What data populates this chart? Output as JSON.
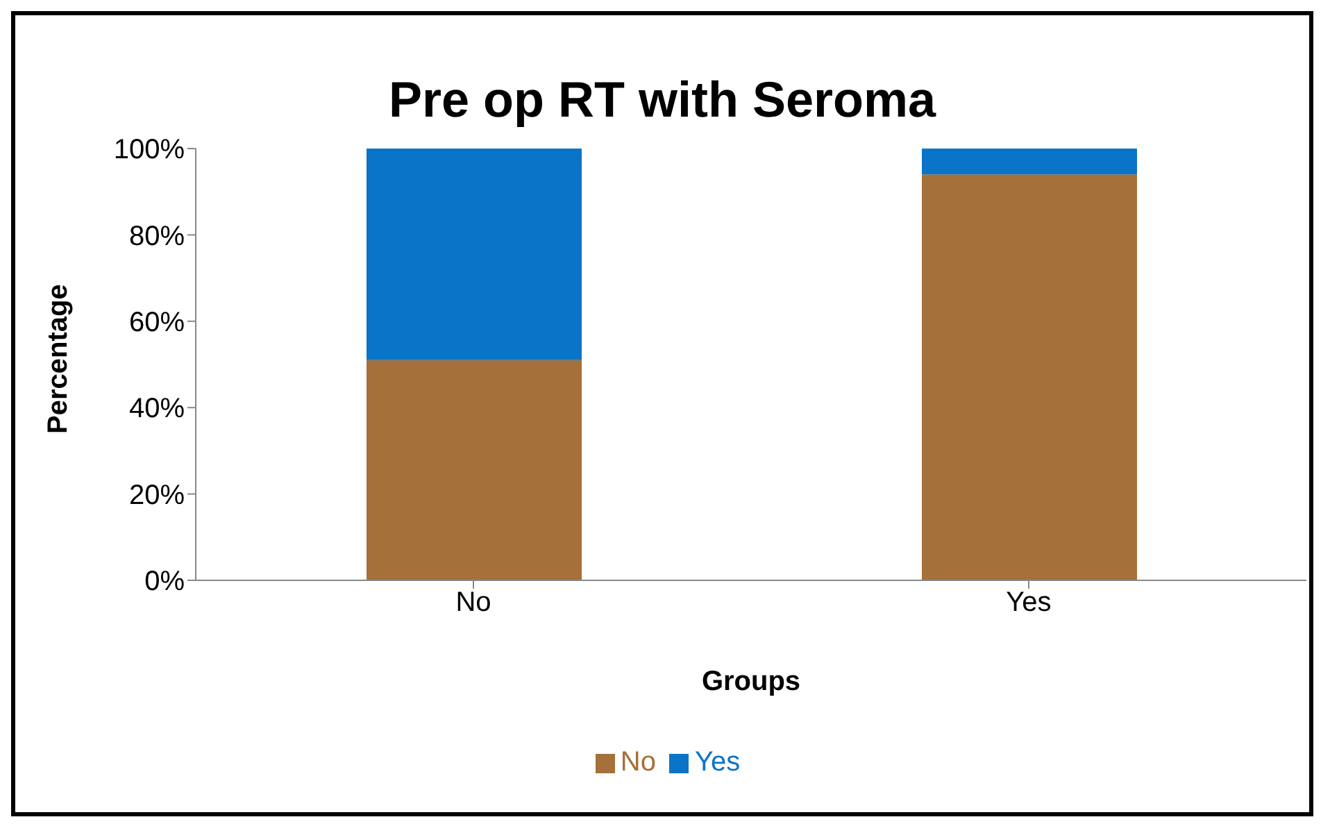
{
  "chart_data": {
    "type": "bar",
    "title": "Pre op RT with Seroma",
    "xlabel": "Groups",
    "ylabel": "Percentage",
    "categories": [
      "No",
      "Yes"
    ],
    "stacked": true,
    "series": [
      {
        "name": "No",
        "color": "#a5703a",
        "values": [
          51,
          94
        ]
      },
      {
        "name": "Yes",
        "color": "#0a74c8",
        "values": [
          49,
          6
        ]
      }
    ],
    "ylim": [
      0,
      100
    ],
    "yticks": [
      {
        "value": 0,
        "label": "0%"
      },
      {
        "value": 20,
        "label": "20%"
      },
      {
        "value": 40,
        "label": "40%"
      },
      {
        "value": 60,
        "label": "60%"
      },
      {
        "value": 80,
        "label": "80%"
      },
      {
        "value": 100,
        "label": "100%"
      }
    ],
    "grid": false,
    "legend": "bottom"
  }
}
